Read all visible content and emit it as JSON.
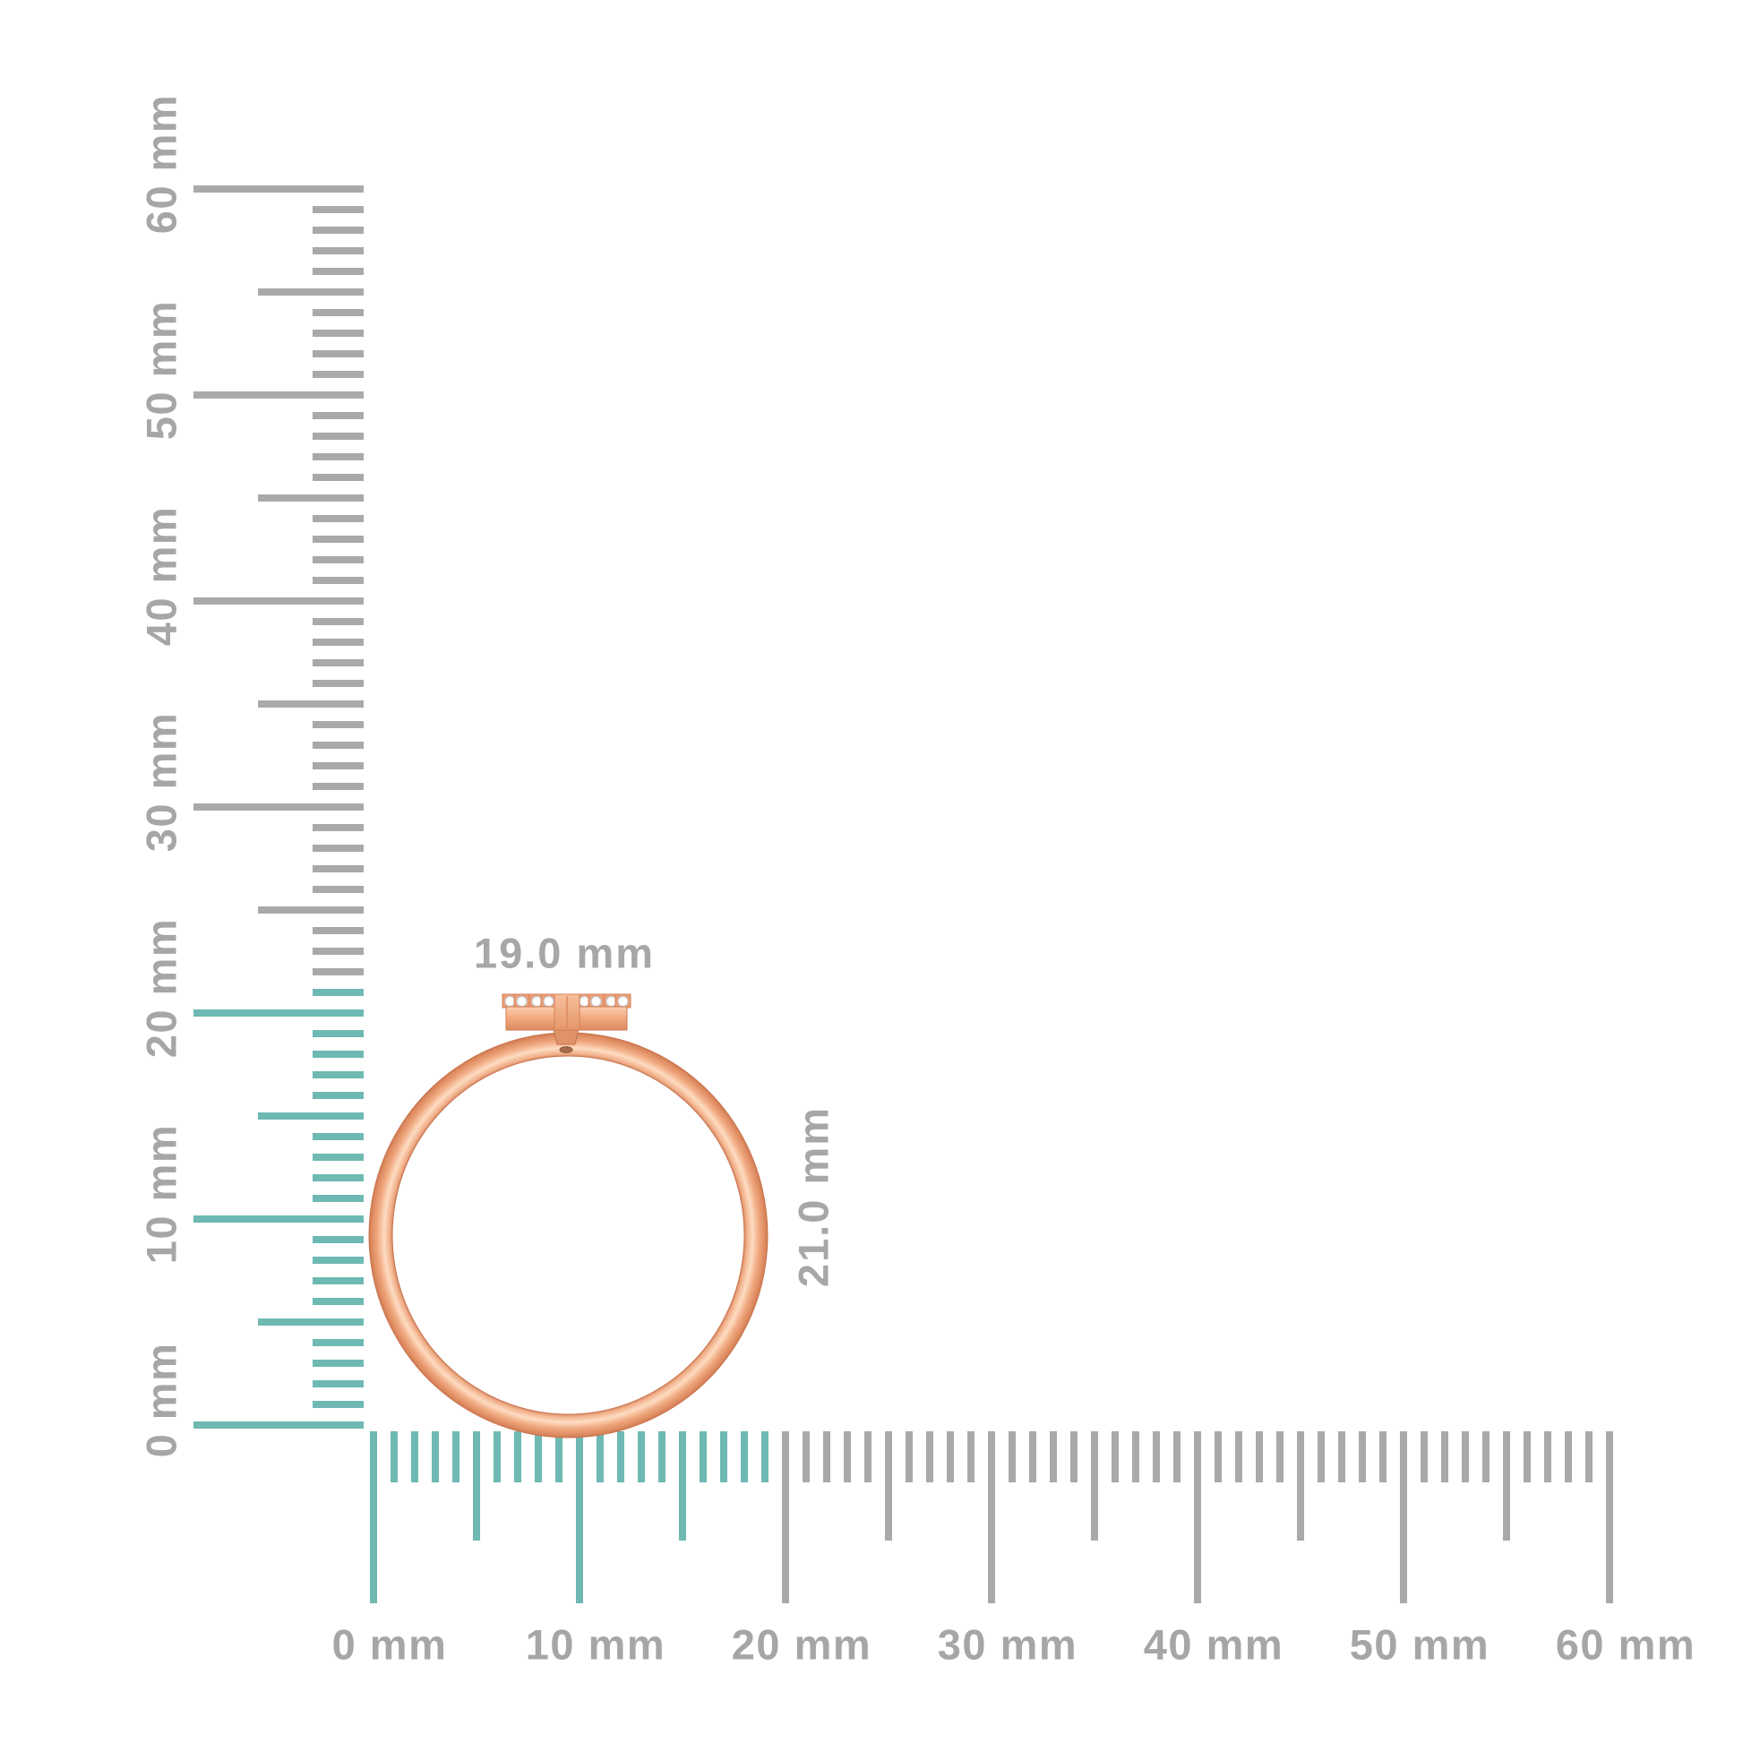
{
  "colors": {
    "background": "#ffffff",
    "teal": "#6eb9b2",
    "gray_tick": "#a9a9a9",
    "label_gray": "#a6a6a6",
    "gold_dark": "#cf7a52",
    "gold_mid": "#efa47c",
    "gold_light": "#fddcc2",
    "diamond_white": "#ffffff"
  },
  "vertical_ruler": {
    "unit": "mm",
    "min": 0,
    "max": 60,
    "major_step": 10,
    "medium_step": 5,
    "highlight_until": 21,
    "labels": [
      {
        "text": "0 mm",
        "value": 0
      },
      {
        "text": "10 mm",
        "value": 10
      },
      {
        "text": "20 mm",
        "value": 20
      },
      {
        "text": "30 mm",
        "value": 30
      },
      {
        "text": "40 mm",
        "value": 40
      },
      {
        "text": "50 mm",
        "value": 50
      },
      {
        "text": "60 mm",
        "value": 60
      }
    ]
  },
  "horizontal_ruler": {
    "unit": "mm",
    "min": 0,
    "max": 60,
    "major_step": 10,
    "medium_step": 5,
    "highlight_until": 19,
    "labels": [
      {
        "text": "0 mm",
        "value": 0
      },
      {
        "text": "10 mm",
        "value": 10
      },
      {
        "text": "20 mm",
        "value": 20
      },
      {
        "text": "30 mm",
        "value": 30
      },
      {
        "text": "40 mm",
        "value": 40
      },
      {
        "text": "50 mm",
        "value": 50
      },
      {
        "text": "60 mm",
        "value": 60
      }
    ]
  },
  "ring": {
    "width_label": "19.0 mm",
    "height_label": "21.0 mm",
    "diamond_count": 8,
    "material": "rose-gold"
  }
}
